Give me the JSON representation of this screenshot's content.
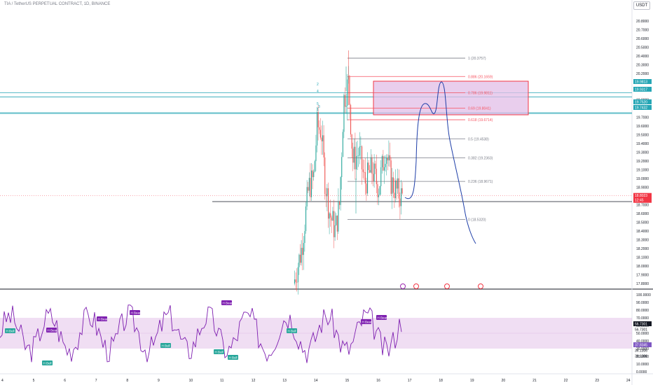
{
  "header": {
    "symbol_title": "TIA / TetherUS PERPETUAL CONTRACT, 1D, BINANCE",
    "currency": "USDT"
  },
  "price_axis": {
    "ticks": [
      "20.8000",
      "20.7000",
      "20.6000",
      "20.5000",
      "20.4000",
      "20.3000",
      "20.2000",
      "20.1000",
      "19.9000",
      "19.8000",
      "19.7000",
      "19.6000",
      "19.5000",
      "19.4000",
      "19.3000",
      "19.2000",
      "19.1000",
      "19.0000",
      "18.9000",
      "18.8000",
      "18.7000",
      "18.6000",
      "18.5000",
      "18.4000",
      "18.3000",
      "18.2000",
      "18.1000",
      "18.0000",
      "17.9000",
      "17.8000"
    ],
    "highlight_labels": [
      {
        "text": "19.9813",
        "value": 19.9813,
        "color": "#26a6b5"
      },
      {
        "text": "19.9317",
        "value": 19.9317,
        "color": "#26a6b5"
      },
      {
        "text": "19.7520",
        "value": 19.752,
        "color": "#26a6b5"
      },
      {
        "text": "19.7432",
        "value": 19.7432,
        "color": "#26a6b5"
      }
    ],
    "current_price": {
      "value": 18.8023,
      "text": "18.8023",
      "countdown": "12:45",
      "color": "#f23645"
    }
  },
  "fib_levels": [
    {
      "ratio": "1 (20.3757)",
      "value": 20.3757,
      "color": "#787b86"
    },
    {
      "ratio": "0.886 (20.1659)",
      "value": 20.1659,
      "color": "#f7525f"
    },
    {
      "ratio": "0.786 (19.9811)",
      "value": 19.9811,
      "color": "#f7525f"
    },
    {
      "ratio": "0.69 (19.8041)",
      "value": 19.8041,
      "color": "#f7525f"
    },
    {
      "ratio": "0.618 (19.6714)",
      "value": 19.6714,
      "color": "#f7525f"
    },
    {
      "ratio": "0.5 (19.4538)",
      "value": 19.4538,
      "color": "#787b86"
    },
    {
      "ratio": "0.382 (19.2363)",
      "value": 19.2363,
      "color": "#787b86"
    },
    {
      "ratio": "0.236 (18.9671)",
      "value": 18.9671,
      "color": "#787b86"
    },
    {
      "ratio": "0 (18.5320)",
      "value": 18.532,
      "color": "#787b86"
    }
  ],
  "wave_labels": [
    "2",
    "4",
    "5",
    "3",
    "1"
  ],
  "oscillator": {
    "axis_ticks": [
      "100.0000",
      "90.0000",
      "80.0000",
      "70.0000",
      "60.0000",
      "50.0000",
      "40.0000",
      "30.0000",
      "20.0000",
      "10.0000",
      "0.0000"
    ],
    "value_labels": [
      {
        "text": "56.7301",
        "value": 56.7301,
        "color": "#ffffff",
        "bg": "#131722"
      },
      {
        "text": "56.7301",
        "value": 56.7301,
        "color": "#131722",
        "bg": "none"
      },
      {
        "text": "37.8345",
        "value": 37.8345,
        "color": "#ffffff",
        "bg": "#7e57c2"
      },
      {
        "text": "36.1306",
        "value": 36.1306,
        "color": "#131722",
        "bg": "none"
      },
      {
        "text": "36.1306",
        "value": 36.1306,
        "color": "#131722",
        "bg": "none"
      }
    ],
    "line_color": "#7e1fb0",
    "band_upper": 70,
    "band_lower": 30,
    "badges": [
      "H Bull",
      "H Bear",
      "H Bull",
      "H Bear",
      "H Bear",
      "H Bull",
      "H Bear",
      "H Bull",
      "H Bull",
      "H Bull",
      "H Bear",
      "H Bear"
    ]
  },
  "time_axis": {
    "ticks": [
      "4",
      "5",
      "6",
      "7",
      "8",
      "9",
      "10",
      "11",
      "12",
      "13",
      "14",
      "15",
      "16",
      "17",
      "18",
      "19",
      "20",
      "21",
      "22",
      "23",
      "24"
    ]
  },
  "colors": {
    "up": "#26a69a",
    "down": "#ef5350",
    "zone_fill": "#e1bee7",
    "zone_border": "#f23645",
    "projection": "#1e3ea8",
    "cyan_line": "#26a6b5"
  }
}
